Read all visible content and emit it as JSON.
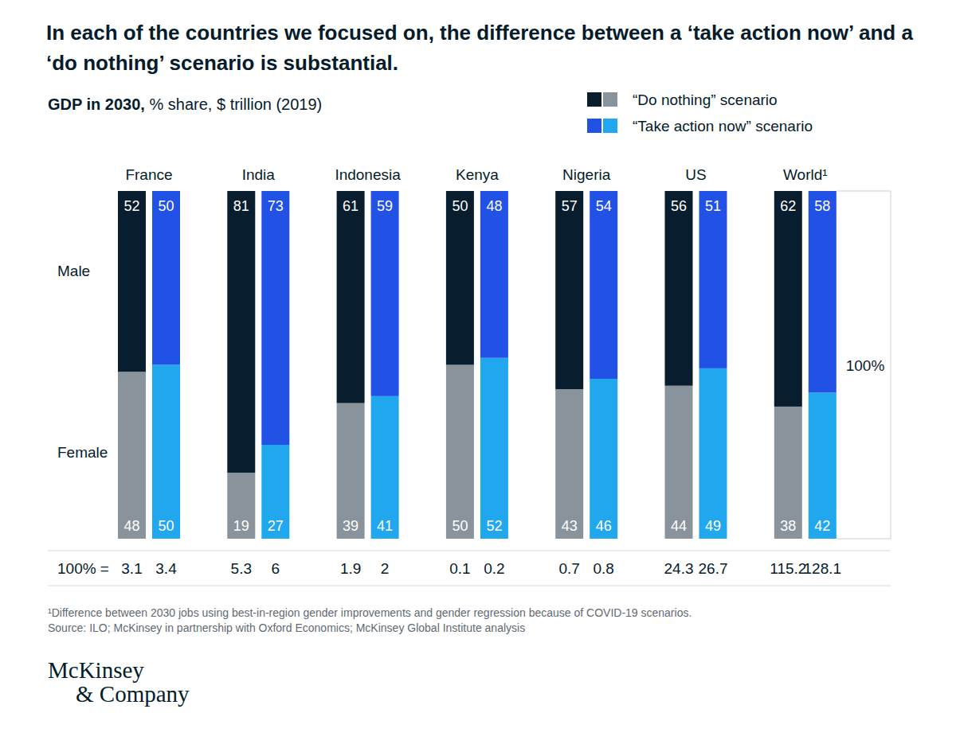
{
  "chart_data": {
    "type": "bar",
    "stacked": true,
    "data_labels": true,
    "tick_labels": "x",
    "title": "In each of the countries we focused on, the difference between a ‘take action now’ and a ‘do nothing’ scenario is substantial.",
    "subtitle": "GDP in 2030, % share, $ trillion (2019)",
    "categories": [
      "France",
      "India",
      "Indonesia",
      "Kenya",
      "Nigeria",
      "US",
      "World¹"
    ],
    "ylim": [
      0,
      100
    ],
    "series": [
      {
        "name": "“Do nothing” scenario",
        "segments": [
          {
            "name": "Male",
            "color": "#081d2d",
            "values": [
              52,
              81,
              61,
              50,
              57,
              56,
              62
            ]
          },
          {
            "name": "Female",
            "color": "#89939b",
            "values": [
              48,
              19,
              39,
              50,
              43,
              44,
              38
            ]
          }
        ],
        "totals": [
          3.1,
          5.3,
          1.9,
          0.1,
          0.7,
          24.3,
          115.2
        ]
      },
      {
        "name": "“Take action now” scenario",
        "segments": [
          {
            "name": "Male",
            "color": "#2251e6",
            "values": [
              50,
              73,
              59,
              48,
              54,
              51,
              58
            ]
          },
          {
            "name": "Female",
            "color": "#21a7ee",
            "values": [
              50,
              27,
              41,
              52,
              46,
              49,
              42
            ]
          }
        ],
        "totals": [
          3.4,
          6.0,
          2.0,
          0.2,
          0.8,
          26.7,
          128.1
        ]
      }
    ],
    "totals_label": "100% =",
    "bracket_label": "100%",
    "footnote": "¹Difference between 2030 jobs using best-in-region gender improvements and gender regression because of COVID-19 scenarios.",
    "source": "Source: ILO; McKinsey in partnership with Oxford Economics; McKinsey Global Institute analysis",
    "logo": [
      "McKinsey",
      "& Company"
    ]
  }
}
